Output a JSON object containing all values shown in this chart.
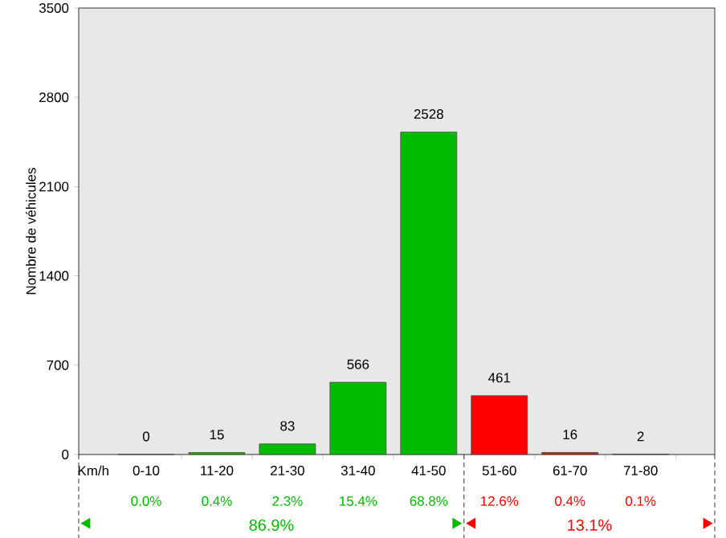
{
  "chart_data": {
    "type": "bar",
    "ylabel": "Nombre de véhicules",
    "xlabel": "Km/h",
    "categories": [
      "0-10",
      "11-20",
      "21-30",
      "31-40",
      "41-50",
      "51-60",
      "61-70",
      "71-80"
    ],
    "values": [
      0,
      15,
      83,
      566,
      2528,
      461,
      16,
      2
    ],
    "colors": [
      "#00bb00",
      "#00bb00",
      "#00bb00",
      "#00bb00",
      "#00bb00",
      "#ff0000",
      "#ff0000",
      "#ff0000"
    ],
    "ylim": [
      0,
      3500
    ],
    "yticks": [
      0,
      700,
      1400,
      2100,
      2800,
      3500
    ],
    "data_labels": true,
    "annotations": [
      "0.0%",
      "0.4%",
      "2.3%",
      "15.4%",
      "68.8%",
      "12.6%",
      "0.4%",
      "0.1%",
      "86.9%",
      "13.1%"
    ]
  }
}
